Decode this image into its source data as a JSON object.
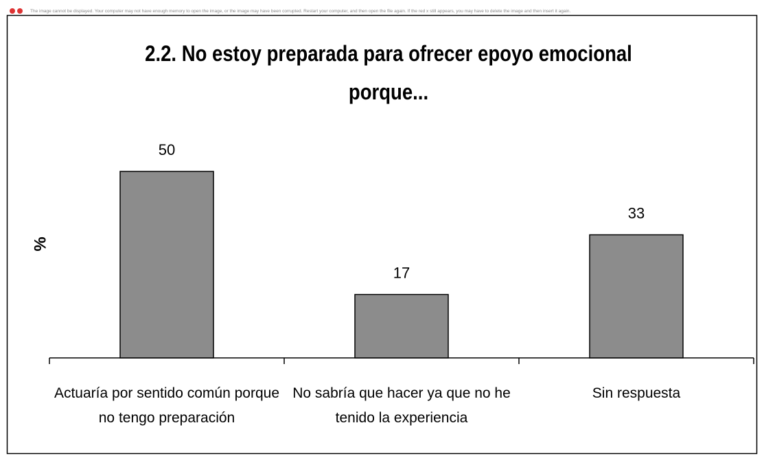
{
  "notice": "The image cannot be displayed. Your computer may not have enough memory to open the image, or the image may have been corrupted. Restart your computer, and then open the file again. If the red x still appears, you may have to delete the image and then insert it again.",
  "chart_data": {
    "type": "bar",
    "title": "2.2. No estoy preparada para ofrecer epoyo emocional porque...",
    "y_label": "%",
    "categories": [
      "Actuaría por sentido común porque no tengo preparación",
      "No sabría que hacer ya que no he tenido la experiencia",
      "Sin respuesta"
    ],
    "values": [
      50,
      17,
      33
    ],
    "color": "#8c8c8c"
  }
}
